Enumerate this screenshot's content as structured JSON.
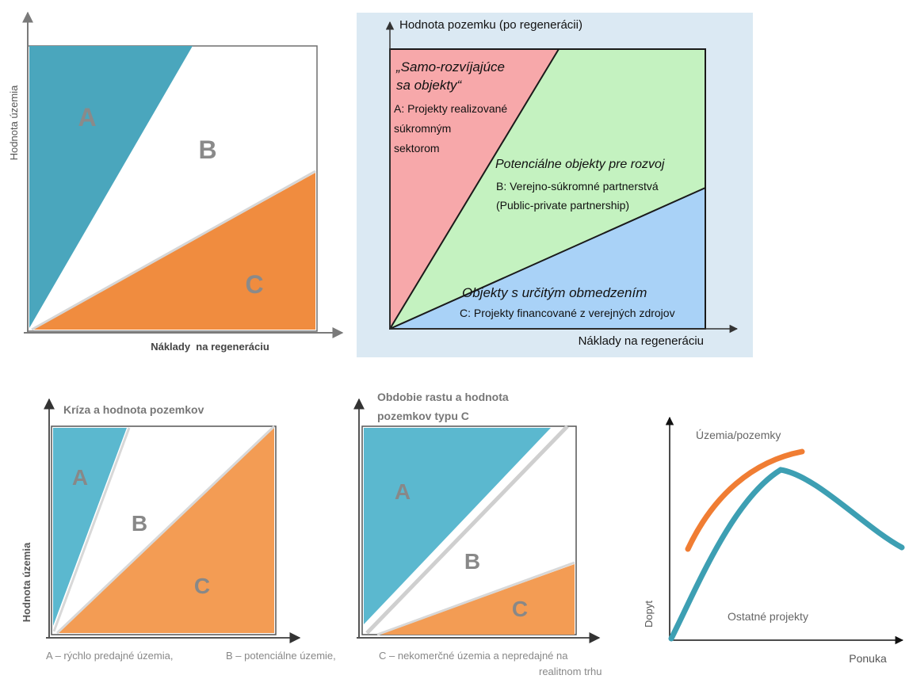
{
  "panel1": {
    "y_label": "Hodnota územia",
    "x_label": "Náklady  na regeneráciu",
    "region_a": "A",
    "region_b": "B",
    "region_c": "C",
    "colors": {
      "a": "#4aa6bd",
      "c": "#f08c3f",
      "letter": "#8a8a8a"
    }
  },
  "panel2": {
    "y_label": "Hodnota pozemku (po regenerácii)",
    "x_label": "Náklady na regeneráciu",
    "region_a_title_1": "„Samo-rozvíjajúce",
    "region_a_title_2": "sa objekty“",
    "region_a_desc_1": "A: Projekty realizované",
    "region_a_desc_2": "súkromným",
    "region_a_desc_3": "sektorom",
    "region_b_title": "Potenciálne objekty pre rozvoj",
    "region_b_desc_1": "B: Verejno-súkromné partnerstvá",
    "region_b_desc_2": "(Public-private partnership)",
    "region_c_title": "Objekty s určitým obmedzením",
    "region_c_desc": "C: Projekty financované z verejných zdrojov",
    "colors": {
      "background": "#dbe9f3",
      "a": "#f7a8aa",
      "b": "#c4f2c0",
      "c": "#a9d2f7"
    }
  },
  "panel3": {
    "title": "Kríza a hodnota pozemkov",
    "y_label": "Hodnota územia",
    "region_a": "A",
    "region_b": "B",
    "region_c": "C"
  },
  "panel4": {
    "title_1": "Obdobie rastu a hodnota",
    "title_2": "pozemkov typu C",
    "region_a": "A",
    "region_b": "B",
    "region_c": "C"
  },
  "panel5": {
    "y_label": "Dopyt",
    "x_label": "Ponuka",
    "curve_orange_label": "Územia/pozemky",
    "curve_teal_label": "Ostatné projekty",
    "colors": {
      "orange": "#f07d33",
      "teal": "#3d9fb3"
    }
  },
  "legend": {
    "a": "A – rýchlo predajné územia,",
    "b": "B – potenciálne územie,",
    "c_1": "C – nekomerčné územia a nepredajné na",
    "c_2": "realitnom trhu"
  }
}
